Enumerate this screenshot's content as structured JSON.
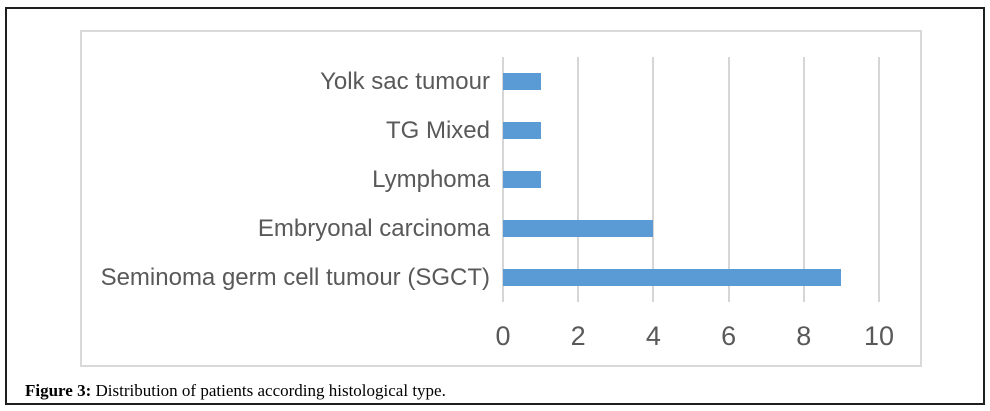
{
  "figure": {
    "caption_label": "Figure 3:",
    "caption_text": " Distribution of patients according histological type."
  },
  "chart_data": {
    "type": "bar",
    "orientation": "horizontal",
    "title": "",
    "xlabel": "",
    "ylabel": "",
    "categories": [
      "Yolk sac tumour",
      "TG Mixed",
      "Lymphoma",
      "Embryonal carcinoma",
      "Seminoma germ cell tumour (SGCT)"
    ],
    "values": [
      1,
      1,
      1,
      4,
      9
    ],
    "xticks": [
      0,
      2,
      4,
      6,
      8,
      10
    ],
    "xlim": [
      0,
      11
    ],
    "grid": "vertical-gridlines-on",
    "legend": "none",
    "colors": {
      "bar": "#5b9bd5",
      "gridline": "#d6d6d6",
      "axis_text": "#595959",
      "chart_border": "#d9d9d9",
      "outer_border": "#1f1f1f"
    }
  }
}
